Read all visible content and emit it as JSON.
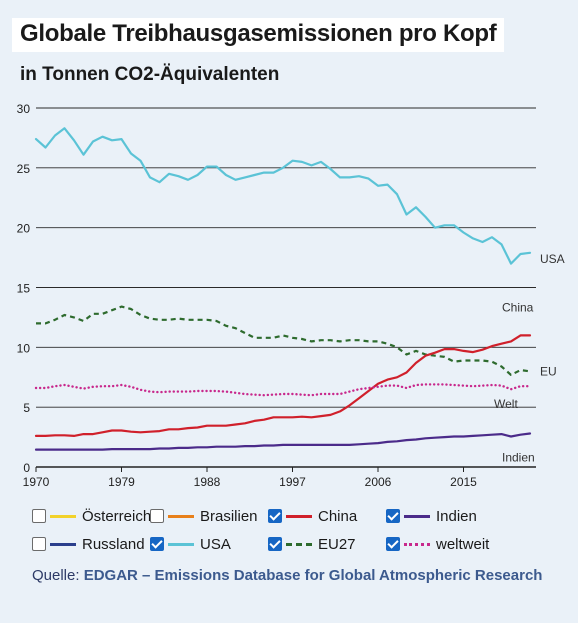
{
  "header": {
    "title": "Globale Treibhausgasemissionen pro Kopf",
    "subtitle": "in Tonnen CO2-Äquivalenten"
  },
  "legend": [
    {
      "label": "Österreich",
      "checked": false,
      "color": "#f2d22b",
      "style": "solid"
    },
    {
      "label": "Brasilien",
      "checked": false,
      "color": "#e8801a",
      "style": "solid"
    },
    {
      "label": "China",
      "checked": true,
      "color": "#d0202b",
      "style": "solid"
    },
    {
      "label": "Indien",
      "checked": true,
      "color": "#4b2b8a",
      "style": "solid"
    },
    {
      "label": "Russland",
      "checked": false,
      "color": "#2b3f8c",
      "style": "solid"
    },
    {
      "label": "USA",
      "checked": true,
      "color": "#5bc3d6",
      "style": "solid"
    },
    {
      "label": "EU27",
      "checked": true,
      "color": "#2e6b2e",
      "style": "dashed"
    },
    {
      "label": "weltweit",
      "checked": true,
      "color": "#c8288c",
      "style": "dotted"
    }
  ],
  "source": {
    "prefix": "Quelle: ",
    "link_text": "EDGAR – Emissions Database for Global Atmospheric Research"
  },
  "chart_data": {
    "type": "line",
    "xlim": [
      1970,
      2022
    ],
    "ylim": [
      0,
      30
    ],
    "xticks": [
      "1970",
      "1979",
      "1988",
      "1997",
      "2006",
      "2015"
    ],
    "yticks": [
      "0",
      "5",
      "10",
      "15",
      "20",
      "25",
      "30"
    ],
    "grid": "horizontal",
    "x": [
      1970,
      1971,
      1972,
      1973,
      1974,
      1975,
      1976,
      1977,
      1978,
      1979,
      1980,
      1981,
      1982,
      1983,
      1984,
      1985,
      1986,
      1987,
      1988,
      1989,
      1990,
      1991,
      1992,
      1993,
      1994,
      1995,
      1996,
      1997,
      1998,
      1999,
      2000,
      2001,
      2002,
      2003,
      2004,
      2005,
      2006,
      2007,
      2008,
      2009,
      2010,
      2011,
      2012,
      2013,
      2014,
      2015,
      2016,
      2017,
      2018,
      2019,
      2020,
      2021,
      2022
    ],
    "series": [
      {
        "name": "USA",
        "end_label": "USA",
        "color": "#5bc3d6",
        "style": "solid",
        "values": [
          27.4,
          26.7,
          27.7,
          28.3,
          27.3,
          26.1,
          27.2,
          27.6,
          27.3,
          27.4,
          26.2,
          25.6,
          24.2,
          23.8,
          24.5,
          24.3,
          24.0,
          24.4,
          25.1,
          25.1,
          24.4,
          24.0,
          24.2,
          24.4,
          24.6,
          24.6,
          25.0,
          25.6,
          25.5,
          25.2,
          25.5,
          24.9,
          24.2,
          24.2,
          24.3,
          24.1,
          23.5,
          23.6,
          22.8,
          21.1,
          21.7,
          20.9,
          20.0,
          20.2,
          20.2,
          19.6,
          19.1,
          18.8,
          19.2,
          18.6,
          17.0,
          17.8,
          17.9
        ]
      },
      {
        "name": "EU27",
        "end_label": "EU",
        "color": "#2e6b2e",
        "style": "dashed",
        "values": [
          12.0,
          12.0,
          12.3,
          12.7,
          12.5,
          12.2,
          12.8,
          12.8,
          13.1,
          13.4,
          13.2,
          12.7,
          12.4,
          12.3,
          12.3,
          12.4,
          12.3,
          12.3,
          12.3,
          12.2,
          11.8,
          11.6,
          11.2,
          10.8,
          10.8,
          10.8,
          11.0,
          10.8,
          10.7,
          10.5,
          10.6,
          10.6,
          10.5,
          10.6,
          10.6,
          10.5,
          10.5,
          10.3,
          10.0,
          9.4,
          9.7,
          9.4,
          9.3,
          9.2,
          8.8,
          8.9,
          8.9,
          8.9,
          8.8,
          8.4,
          7.7,
          8.1,
          8.0
        ]
      },
      {
        "name": "China",
        "end_label": "China",
        "color": "#d0202b",
        "style": "solid",
        "values": [
          2.6,
          2.6,
          2.65,
          2.65,
          2.6,
          2.75,
          2.75,
          2.9,
          3.05,
          3.05,
          2.95,
          2.9,
          2.95,
          3.0,
          3.15,
          3.15,
          3.25,
          3.3,
          3.45,
          3.45,
          3.45,
          3.55,
          3.65,
          3.85,
          3.95,
          4.15,
          4.15,
          4.15,
          4.2,
          4.15,
          4.25,
          4.35,
          4.65,
          5.15,
          5.75,
          6.35,
          6.95,
          7.3,
          7.5,
          7.9,
          8.7,
          9.3,
          9.55,
          9.85,
          9.85,
          9.7,
          9.6,
          9.8,
          10.1,
          10.3,
          10.5,
          11.0,
          11.0
        ]
      },
      {
        "name": "weltweit",
        "end_label": "Welt",
        "color": "#c8288c",
        "style": "dotted",
        "values": [
          6.6,
          6.6,
          6.75,
          6.85,
          6.7,
          6.55,
          6.7,
          6.75,
          6.75,
          6.85,
          6.7,
          6.45,
          6.3,
          6.25,
          6.3,
          6.3,
          6.3,
          6.35,
          6.35,
          6.35,
          6.3,
          6.2,
          6.1,
          6.05,
          6.0,
          6.05,
          6.1,
          6.1,
          6.05,
          6.0,
          6.1,
          6.1,
          6.1,
          6.3,
          6.5,
          6.6,
          6.7,
          6.8,
          6.8,
          6.6,
          6.85,
          6.9,
          6.9,
          6.9,
          6.85,
          6.8,
          6.75,
          6.8,
          6.85,
          6.8,
          6.5,
          6.75,
          6.75
        ]
      },
      {
        "name": "Indien",
        "end_label": "Indien",
        "color": "#4b2b8a",
        "style": "solid",
        "values": [
          1.45,
          1.45,
          1.45,
          1.45,
          1.45,
          1.45,
          1.45,
          1.45,
          1.5,
          1.5,
          1.5,
          1.5,
          1.5,
          1.55,
          1.55,
          1.6,
          1.6,
          1.65,
          1.65,
          1.7,
          1.7,
          1.7,
          1.75,
          1.75,
          1.8,
          1.8,
          1.85,
          1.85,
          1.85,
          1.85,
          1.85,
          1.85,
          1.85,
          1.85,
          1.9,
          1.95,
          2.0,
          2.1,
          2.15,
          2.25,
          2.3,
          2.4,
          2.45,
          2.5,
          2.55,
          2.55,
          2.6,
          2.65,
          2.7,
          2.75,
          2.55,
          2.7,
          2.8
        ]
      }
    ]
  }
}
